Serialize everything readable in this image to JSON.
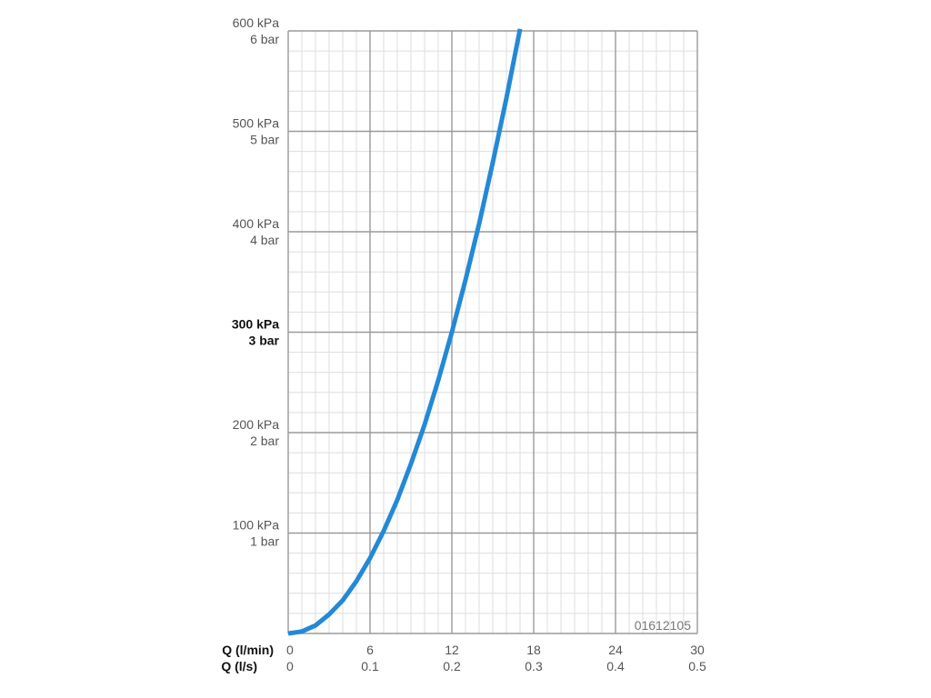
{
  "chart_data": {
    "type": "line",
    "title": "",
    "x_axis": {
      "title_primary": "Q (l/min)",
      "title_secondary": "Q (l/s)",
      "ticks_primary": [
        "0",
        "6",
        "12",
        "18",
        "24",
        "30"
      ],
      "ticks_secondary": [
        "0",
        "0.1",
        "0.2",
        "0.3",
        "0.4",
        "0.5"
      ],
      "range": [
        0,
        30
      ],
      "major_step": 6,
      "minor_step": 1
    },
    "y_axis": {
      "ticks": [
        {
          "value": 600,
          "kpa": "600 kPa",
          "bar": "6 bar",
          "bold": false
        },
        {
          "value": 500,
          "kpa": "500 kPa",
          "bar": "5 bar",
          "bold": false
        },
        {
          "value": 400,
          "kpa": "400 kPa",
          "bar": "4 bar",
          "bold": false
        },
        {
          "value": 300,
          "kpa": "300 kPa",
          "bar": "3 bar",
          "bold": true
        },
        {
          "value": 200,
          "kpa": "200 kPa",
          "bar": "2 bar",
          "bold": false
        },
        {
          "value": 100,
          "kpa": "100 kPa",
          "bar": "1 bar",
          "bold": false
        }
      ],
      "range": [
        0,
        600
      ],
      "major_step": 100,
      "minor_step": 20
    },
    "grid": true,
    "series": [
      {
        "color": "#2389d7",
        "x": [
          0,
          1,
          2,
          3,
          4,
          5,
          6,
          7,
          8,
          9,
          10,
          11,
          12,
          13,
          14,
          15,
          16,
          17
        ],
        "y": [
          0,
          2,
          8,
          19,
          33,
          52,
          75,
          102,
          133,
          169,
          208,
          252,
          300,
          352,
          408,
          469,
          533,
          602
        ]
      }
    ],
    "annotation": "01612105"
  },
  "colors": {
    "grid_major": "#9a9a9a",
    "grid_minor": "#dedede",
    "curve": "#2389d7"
  }
}
